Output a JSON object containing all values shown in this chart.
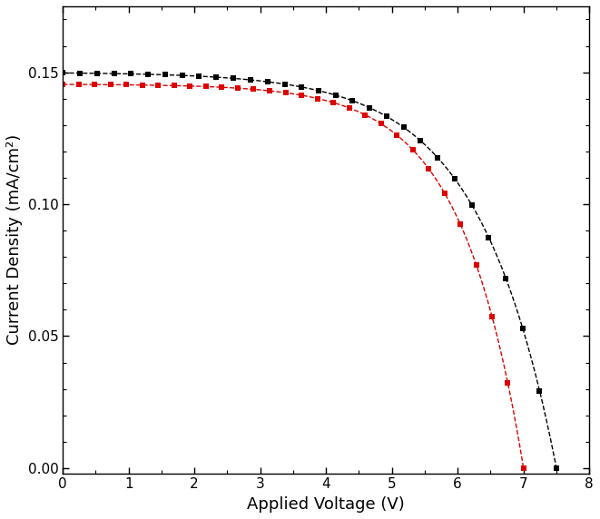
{
  "title": "",
  "xlabel": "Applied Voltage (V)",
  "ylabel": "Current Density (mA/cm²)",
  "xlim": [
    0,
    8
  ],
  "ylim": [
    -0.002,
    0.175
  ],
  "yticks": [
    0.0,
    0.05,
    0.1,
    0.15
  ],
  "xticks": [
    0,
    1,
    2,
    3,
    4,
    5,
    6,
    7,
    8
  ],
  "background_color": "#ffffff",
  "black_curve": {
    "color": "#000000",
    "Jsc": 0.15,
    "Voc": 7.5,
    "steepness": 0.85
  },
  "red_curve": {
    "color": "#dd0000",
    "Jsc": 0.1455,
    "Voc": 7.0,
    "steepness": 1.05
  },
  "marker": "s",
  "markersize": 5,
  "linewidth": 1.0,
  "linestyle": "--",
  "num_markers": 30
}
